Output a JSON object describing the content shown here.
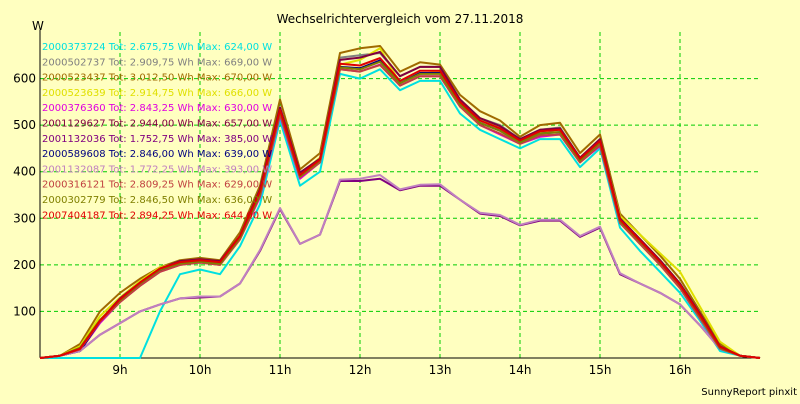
{
  "chart_data": {
    "type": "line",
    "title": "Wechselrichtervergleich vom 27.11.2018",
    "ylabel": "W",
    "footer": "SunnyReport pinxit",
    "ylim": [
      0,
      700
    ],
    "xlim": [
      8.0,
      17.0
    ],
    "yticks": [
      100,
      200,
      300,
      400,
      500,
      600
    ],
    "xticks": [
      9,
      10,
      11,
      12,
      13,
      14,
      15,
      16
    ],
    "xtick_labels": [
      "9h",
      "10h",
      "11h",
      "12h",
      "13h",
      "14h",
      "15h",
      "16h"
    ],
    "grid": true,
    "grid_color": "#00cc00",
    "background": "#ffffc0",
    "legend_position": "top-left",
    "x": [
      8.0,
      8.25,
      8.5,
      8.75,
      9.0,
      9.25,
      9.5,
      9.75,
      10.0,
      10.25,
      10.5,
      10.75,
      11.0,
      11.25,
      11.5,
      11.75,
      12.0,
      12.25,
      12.5,
      12.75,
      13.0,
      13.25,
      13.5,
      13.75,
      14.0,
      14.25,
      14.5,
      14.75,
      15.0,
      15.25,
      15.5,
      15.75,
      16.0,
      16.25,
      16.5,
      16.75,
      17.0
    ],
    "series": [
      {
        "name": "2000373724 Tot: 2.675,75 Wh Max: 624,00 W",
        "color": "#00e0e0",
        "values": [
          0,
          0,
          0,
          0,
          0,
          0,
          100,
          180,
          190,
          180,
          240,
          330,
          510,
          370,
          400,
          610,
          600,
          620,
          575,
          595,
          595,
          525,
          490,
          470,
          450,
          470,
          470,
          410,
          450,
          280,
          230,
          185,
          140,
          80,
          15,
          5,
          0
        ]
      },
      {
        "name": "2000502737 Tot: 2.909,75 Wh Max: 669,00 W",
        "color": "#808080",
        "values": [
          0,
          5,
          20,
          80,
          125,
          160,
          190,
          205,
          210,
          205,
          260,
          360,
          535,
          395,
          425,
          645,
          650,
          655,
          605,
          625,
          625,
          555,
          515,
          500,
          470,
          490,
          495,
          430,
          470,
          300,
          255,
          210,
          160,
          95,
          25,
          5,
          0
        ]
      },
      {
        "name": "2000523437 Tot: 3.012,50 Wh Max: 670,00 W",
        "color": "#a06a00",
        "values": [
          0,
          5,
          30,
          100,
          140,
          170,
          195,
          210,
          215,
          210,
          270,
          370,
          555,
          405,
          440,
          655,
          665,
          670,
          615,
          635,
          630,
          565,
          530,
          510,
          475,
          500,
          505,
          440,
          480,
          310,
          265,
          220,
          170,
          100,
          30,
          5,
          0
        ]
      },
      {
        "name": "2000523639 Tot: 2.914,75 Wh Max: 666,00 W",
        "color": "#e0e000",
        "values": [
          0,
          5,
          25,
          90,
          130,
          165,
          195,
          205,
          205,
          200,
          260,
          355,
          535,
          395,
          430,
          630,
          640,
          665,
          590,
          610,
          615,
          545,
          515,
          495,
          465,
          485,
          490,
          425,
          465,
          305,
          265,
          225,
          185,
          110,
          35,
          5,
          0
        ]
      },
      {
        "name": "2000376360 Tot: 2.843,25 Wh Max: 630,00 W",
        "color": "#e000e0",
        "values": [
          0,
          5,
          15,
          75,
          120,
          155,
          185,
          200,
          205,
          200,
          255,
          345,
          520,
          385,
          420,
          620,
          615,
          630,
          585,
          605,
          605,
          540,
          500,
          480,
          460,
          475,
          480,
          420,
          455,
          290,
          245,
          200,
          150,
          85,
          20,
          5,
          0
        ]
      },
      {
        "name": "2001129627 Tot: 2.944,00 Wh Max: 657,00 W",
        "color": "#800040",
        "values": [
          0,
          5,
          20,
          80,
          128,
          162,
          192,
          208,
          212,
          208,
          262,
          362,
          538,
          398,
          428,
          640,
          645,
          657,
          605,
          625,
          625,
          555,
          515,
          498,
          470,
          490,
          493,
          430,
          470,
          300,
          255,
          210,
          160,
          95,
          25,
          5,
          0
        ]
      },
      {
        "name": "2001132036 Tot: 1.752,75 Wh Max: 385,00 W",
        "color": "#800080",
        "values": [
          0,
          5,
          15,
          50,
          75,
          100,
          115,
          128,
          130,
          132,
          160,
          230,
          320,
          245,
          265,
          380,
          380,
          385,
          360,
          370,
          370,
          340,
          310,
          305,
          285,
          295,
          295,
          260,
          280,
          180,
          160,
          140,
          115,
          70,
          20,
          5,
          0
        ]
      },
      {
        "name": "2000589608 Tot: 2.846,00 Wh Max: 639,00 W",
        "color": "#000080",
        "values": [
          0,
          5,
          15,
          78,
          122,
          158,
          188,
          203,
          208,
          203,
          258,
          352,
          528,
          390,
          422,
          625,
          622,
          639,
          590,
          612,
          612,
          545,
          505,
          488,
          463,
          482,
          485,
          424,
          460,
          293,
          248,
          203,
          153,
          88,
          22,
          5,
          0
        ]
      },
      {
        "name": "2001132087 Tot: 1.772,25 Wh Max: 393,00 W",
        "color": "#c080c0",
        "values": [
          0,
          5,
          15,
          50,
          75,
          100,
          115,
          128,
          132,
          132,
          160,
          232,
          322,
          245,
          265,
          383,
          385,
          393,
          362,
          372,
          373,
          340,
          312,
          307,
          286,
          297,
          297,
          262,
          282,
          182,
          160,
          140,
          115,
          70,
          20,
          5,
          0
        ]
      },
      {
        "name": "2000316121 Tot: 2.809,25 Wh Max: 629,00 W",
        "color": "#c04040",
        "values": [
          0,
          5,
          18,
          78,
          120,
          155,
          185,
          200,
          205,
          200,
          255,
          348,
          523,
          388,
          420,
          620,
          615,
          629,
          585,
          605,
          605,
          540,
          500,
          482,
          460,
          478,
          480,
          420,
          457,
          290,
          245,
          200,
          150,
          85,
          20,
          5,
          0
        ]
      },
      {
        "name": "2000302779 Tot: 2.846,50 Wh Max: 636,00 W",
        "color": "#808000",
        "values": [
          0,
          5,
          22,
          82,
          124,
          160,
          190,
          203,
          207,
          202,
          258,
          352,
          530,
          390,
          424,
          624,
          620,
          636,
          590,
          610,
          610,
          545,
          505,
          488,
          463,
          482,
          485,
          424,
          462,
          294,
          250,
          206,
          156,
          90,
          22,
          5,
          0
        ]
      },
      {
        "name": "2007404187 Tot: 2.894,25 Wh Max: 644,00 W",
        "color": "#e00000",
        "values": [
          0,
          5,
          20,
          80,
          126,
          162,
          192,
          206,
          210,
          206,
          262,
          358,
          533,
          393,
          426,
          632,
          628,
          644,
          595,
          617,
          617,
          550,
          510,
          493,
          467,
          487,
          490,
          428,
          466,
          297,
          252,
          207,
          157,
          92,
          24,
          5,
          0
        ]
      }
    ]
  }
}
